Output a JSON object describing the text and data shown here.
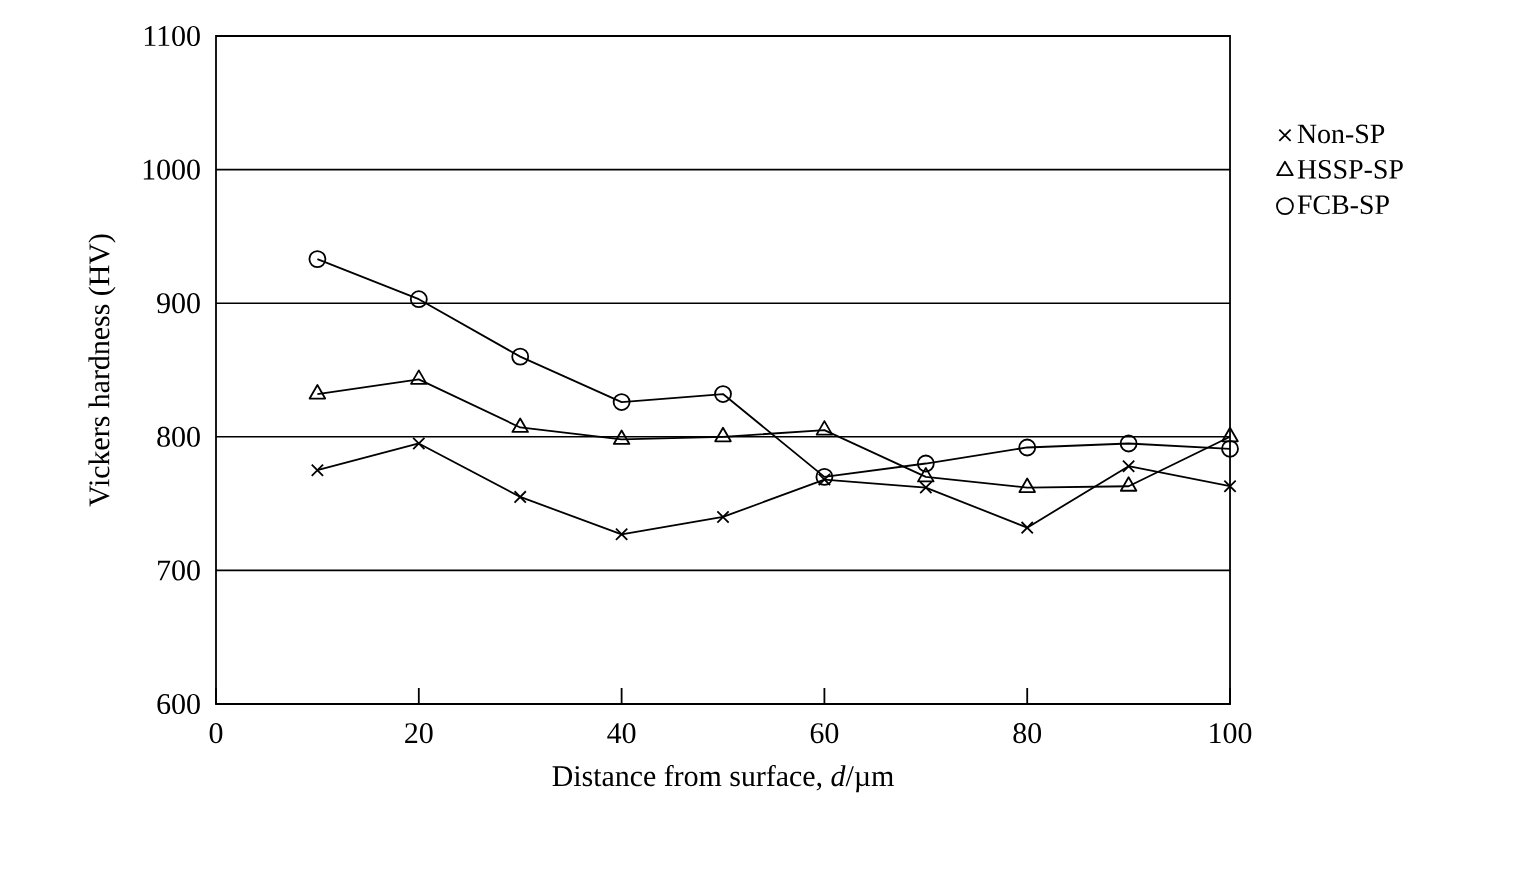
{
  "chart_data": {
    "type": "line",
    "xlabel": "Distance from surface, *d*/µm",
    "ylabel": "Vickers hardness (HV)",
    "x": [
      10,
      20,
      30,
      40,
      50,
      60,
      70,
      80,
      90,
      100
    ],
    "series": [
      {
        "name": "Non-SP",
        "color": "#000000",
        "marker": "cross",
        "values": [
          775,
          795,
          755,
          727,
          740,
          768,
          762,
          732,
          778,
          763
        ]
      },
      {
        "name": "HSSP-SP",
        "color": "#000000",
        "marker": "triangle",
        "values": [
          832,
          843,
          807,
          798,
          800,
          805,
          770,
          762,
          763,
          800
        ]
      },
      {
        "name": "FCB-SP",
        "color": "#000000",
        "marker": "circle",
        "values": [
          933,
          903,
          860,
          826,
          832,
          770,
          780,
          792,
          795,
          791
        ]
      }
    ],
    "xlim": [
      0,
      100
    ],
    "ylim": [
      600,
      1100
    ],
    "xticks": [
      0,
      20,
      40,
      60,
      80,
      100
    ],
    "yticks": [
      600,
      700,
      800,
      900,
      1000,
      1100
    ],
    "grid": "y",
    "legend": "top right",
    "line_style": "solid"
  }
}
